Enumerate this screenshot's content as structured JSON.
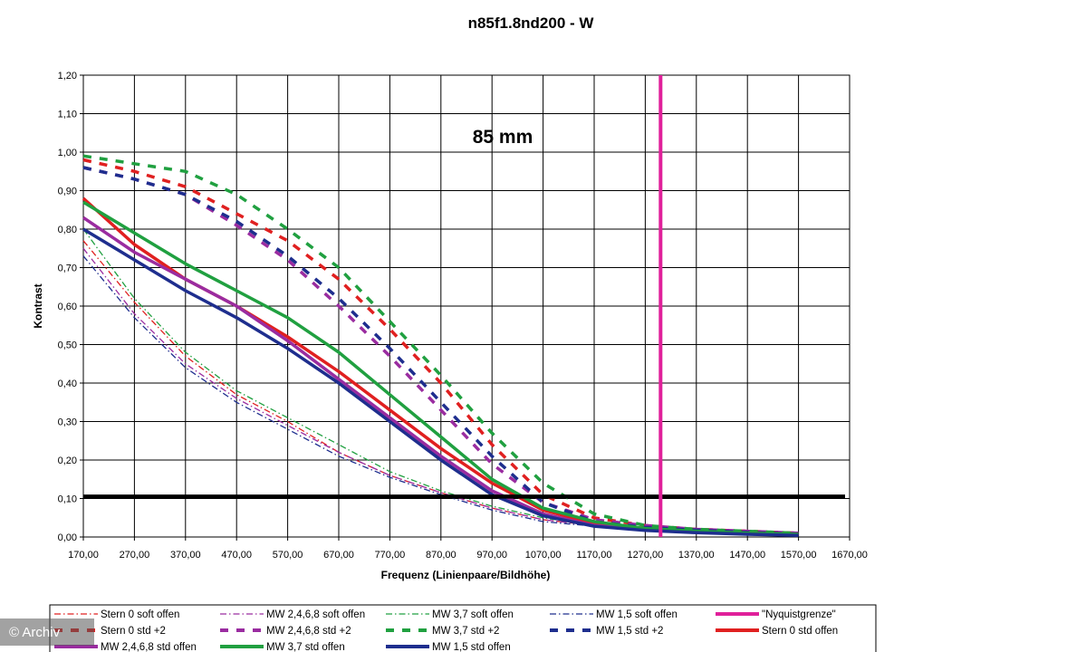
{
  "chart_data": {
    "type": "line",
    "title": "n85f1.8nd200 - W",
    "xlabel": "Frequenz (Linienpaare/Bildhöhe)",
    "ylabel": "Kontrast",
    "annotation": "85 mm",
    "xlim": [
      170,
      1670
    ],
    "ylim": [
      0,
      1.2
    ],
    "x_ticks": [
      "170,00",
      "270,00",
      "370,00",
      "470,00",
      "570,00",
      "670,00",
      "770,00",
      "870,00",
      "970,00",
      "1070,00",
      "1170,00",
      "1270,00",
      "1370,00",
      "1470,00",
      "1570,00",
      "1670,00"
    ],
    "y_ticks": [
      "0,00",
      "0,10",
      "0,20",
      "0,30",
      "0,40",
      "0,50",
      "0,60",
      "0,70",
      "0,80",
      "0,90",
      "1,00",
      "1,10",
      "1,20"
    ],
    "grid": true,
    "threshold": {
      "y": 0.105,
      "color": "#000000"
    },
    "nyquist": {
      "name": "\"Nyquistgrenze\"",
      "x": 1300,
      "color": "#e0209a"
    },
    "series": [
      {
        "name": "Stern 0 soft offen",
        "color": "#e02020",
        "style": "dashdot",
        "width": 1.3,
        "x": [
          170,
          270,
          370,
          470,
          570,
          670,
          770,
          870,
          970,
          1070,
          1170,
          1270,
          1370,
          1470,
          1570
        ],
        "y": [
          0.77,
          0.61,
          0.47,
          0.37,
          0.3,
          0.22,
          0.16,
          0.115,
          0.075,
          0.045,
          0.03,
          0.02,
          0.013,
          0.009,
          0.006
        ]
      },
      {
        "name": "MW 2,4,6,8 soft offen",
        "color": "#9a2ca0",
        "style": "dashdot",
        "width": 1.3,
        "x": [
          170,
          270,
          370,
          470,
          570,
          670,
          770,
          870,
          970,
          1070,
          1170,
          1270,
          1370,
          1470,
          1570
        ],
        "y": [
          0.75,
          0.58,
          0.45,
          0.36,
          0.29,
          0.22,
          0.16,
          0.115,
          0.075,
          0.045,
          0.03,
          0.02,
          0.013,
          0.009,
          0.006
        ]
      },
      {
        "name": "MW 3,7 soft offen",
        "color": "#20a040",
        "style": "dashdot",
        "width": 1.3,
        "x": [
          170,
          270,
          370,
          470,
          570,
          670,
          770,
          870,
          970,
          1070,
          1170,
          1270,
          1370,
          1470,
          1570
        ],
        "y": [
          0.8,
          0.62,
          0.48,
          0.38,
          0.31,
          0.24,
          0.17,
          0.12,
          0.08,
          0.05,
          0.03,
          0.02,
          0.014,
          0.01,
          0.007
        ]
      },
      {
        "name": "MW 1,5 soft offen",
        "color": "#1e2e8e",
        "style": "dashdot",
        "width": 1.3,
        "x": [
          170,
          270,
          370,
          470,
          570,
          670,
          770,
          870,
          970,
          1070,
          1170,
          1270,
          1370,
          1470,
          1570
        ],
        "y": [
          0.73,
          0.57,
          0.44,
          0.35,
          0.28,
          0.21,
          0.155,
          0.11,
          0.07,
          0.04,
          0.028,
          0.018,
          0.012,
          0.008,
          0.005
        ]
      },
      {
        "name": "Stern 0 std +2",
        "color": "#e02020",
        "style": "dash",
        "width": 3.5,
        "x": [
          170,
          270,
          370,
          470,
          570,
          670,
          770,
          870,
          970,
          1070,
          1170,
          1270,
          1370,
          1470,
          1570
        ],
        "y": [
          0.98,
          0.95,
          0.91,
          0.84,
          0.77,
          0.67,
          0.54,
          0.4,
          0.24,
          0.11,
          0.05,
          0.03,
          0.02,
          0.015,
          0.01
        ]
      },
      {
        "name": "MW 2,4,6,8 std +2",
        "color": "#9a2ca0",
        "style": "dash",
        "width": 3.5,
        "x": [
          170,
          270,
          370,
          470,
          570,
          670,
          770,
          870,
          970,
          1070,
          1170,
          1270,
          1370,
          1470,
          1570
        ],
        "y": [
          0.96,
          0.93,
          0.89,
          0.81,
          0.72,
          0.6,
          0.47,
          0.33,
          0.19,
          0.09,
          0.045,
          0.03,
          0.02,
          0.015,
          0.01
        ]
      },
      {
        "name": "MW 3,7 std +2",
        "color": "#20a040",
        "style": "dash",
        "width": 3.5,
        "x": [
          170,
          270,
          370,
          470,
          570,
          670,
          770,
          870,
          970,
          1070,
          1170,
          1270,
          1370,
          1470,
          1570
        ],
        "y": [
          0.99,
          0.97,
          0.95,
          0.89,
          0.8,
          0.7,
          0.56,
          0.42,
          0.27,
          0.14,
          0.06,
          0.03,
          0.02,
          0.015,
          0.01
        ]
      },
      {
        "name": "MW 1,5 std +2",
        "color": "#1e2e8e",
        "style": "dash",
        "width": 3.5,
        "x": [
          170,
          270,
          370,
          470,
          570,
          670,
          770,
          870,
          970,
          1070,
          1170,
          1270,
          1370,
          1470,
          1570
        ],
        "y": [
          0.96,
          0.93,
          0.89,
          0.82,
          0.73,
          0.62,
          0.49,
          0.35,
          0.21,
          0.09,
          0.04,
          0.025,
          0.018,
          0.012,
          0.008
        ]
      },
      {
        "name": "Stern 0 std offen",
        "color": "#e02020",
        "style": "solid",
        "width": 3.5,
        "x": [
          170,
          270,
          370,
          470,
          570,
          670,
          770,
          870,
          970,
          1070,
          1170,
          1270,
          1370,
          1470,
          1570
        ],
        "y": [
          0.88,
          0.76,
          0.67,
          0.6,
          0.52,
          0.43,
          0.33,
          0.23,
          0.14,
          0.07,
          0.035,
          0.02,
          0.014,
          0.01,
          0.007
        ]
      },
      {
        "name": "MW 2,4,6,8 std offen",
        "color": "#9a2ca0",
        "style": "solid",
        "width": 3.5,
        "x": [
          170,
          270,
          370,
          470,
          570,
          670,
          770,
          870,
          970,
          1070,
          1170,
          1270,
          1370,
          1470,
          1570
        ],
        "y": [
          0.83,
          0.74,
          0.67,
          0.6,
          0.51,
          0.41,
          0.31,
          0.21,
          0.12,
          0.06,
          0.03,
          0.018,
          0.012,
          0.008,
          0.005
        ]
      },
      {
        "name": "MW 3,7 std offen",
        "color": "#20a040",
        "style": "solid",
        "width": 3.5,
        "x": [
          170,
          270,
          370,
          470,
          570,
          670,
          770,
          870,
          970,
          1070,
          1170,
          1270,
          1370,
          1470,
          1570
        ],
        "y": [
          0.87,
          0.79,
          0.71,
          0.64,
          0.57,
          0.48,
          0.37,
          0.26,
          0.15,
          0.075,
          0.04,
          0.022,
          0.015,
          0.01,
          0.007
        ]
      },
      {
        "name": "MW 1,5 std offen",
        "color": "#1e2e8e",
        "style": "solid",
        "width": 3.5,
        "x": [
          170,
          270,
          370,
          470,
          570,
          670,
          770,
          870,
          970,
          1070,
          1170,
          1270,
          1370,
          1470,
          1570
        ],
        "y": [
          0.8,
          0.72,
          0.64,
          0.57,
          0.49,
          0.4,
          0.3,
          0.2,
          0.11,
          0.055,
          0.028,
          0.017,
          0.011,
          0.007,
          0.004
        ]
      }
    ]
  },
  "watermark": "© Archiv"
}
